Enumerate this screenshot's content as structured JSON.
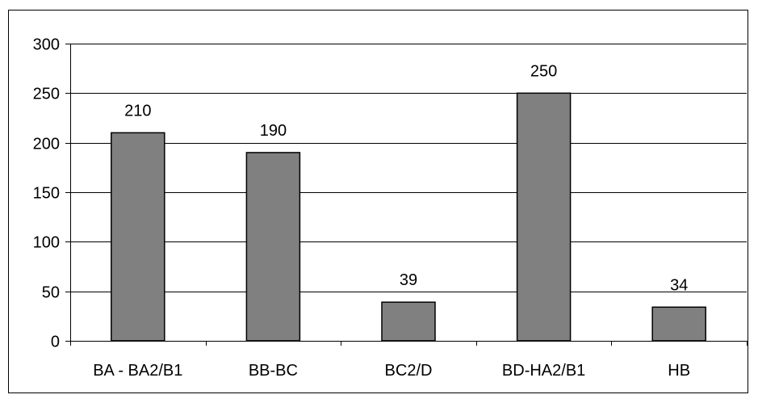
{
  "chart_data": {
    "type": "bar",
    "categories": [
      "BA - BA2/B1",
      "BB-BC",
      "BC2/D",
      "BD-HA2/B1",
      "HB"
    ],
    "values": [
      210,
      190,
      39,
      250,
      34
    ],
    "data_labels": [
      "210",
      "190",
      "39",
      "250",
      "34"
    ],
    "y_ticks": [
      "0",
      "50",
      "100",
      "150",
      "200",
      "250",
      "300"
    ],
    "ylim": [
      0,
      300
    ],
    "y_tick_step": 50,
    "grid": true,
    "legend": "none",
    "colors": {
      "bar_fill": "#808080",
      "bar_stroke": "#000000",
      "grid": "#000000",
      "axis": "#000000",
      "background": "#ffffff"
    }
  }
}
